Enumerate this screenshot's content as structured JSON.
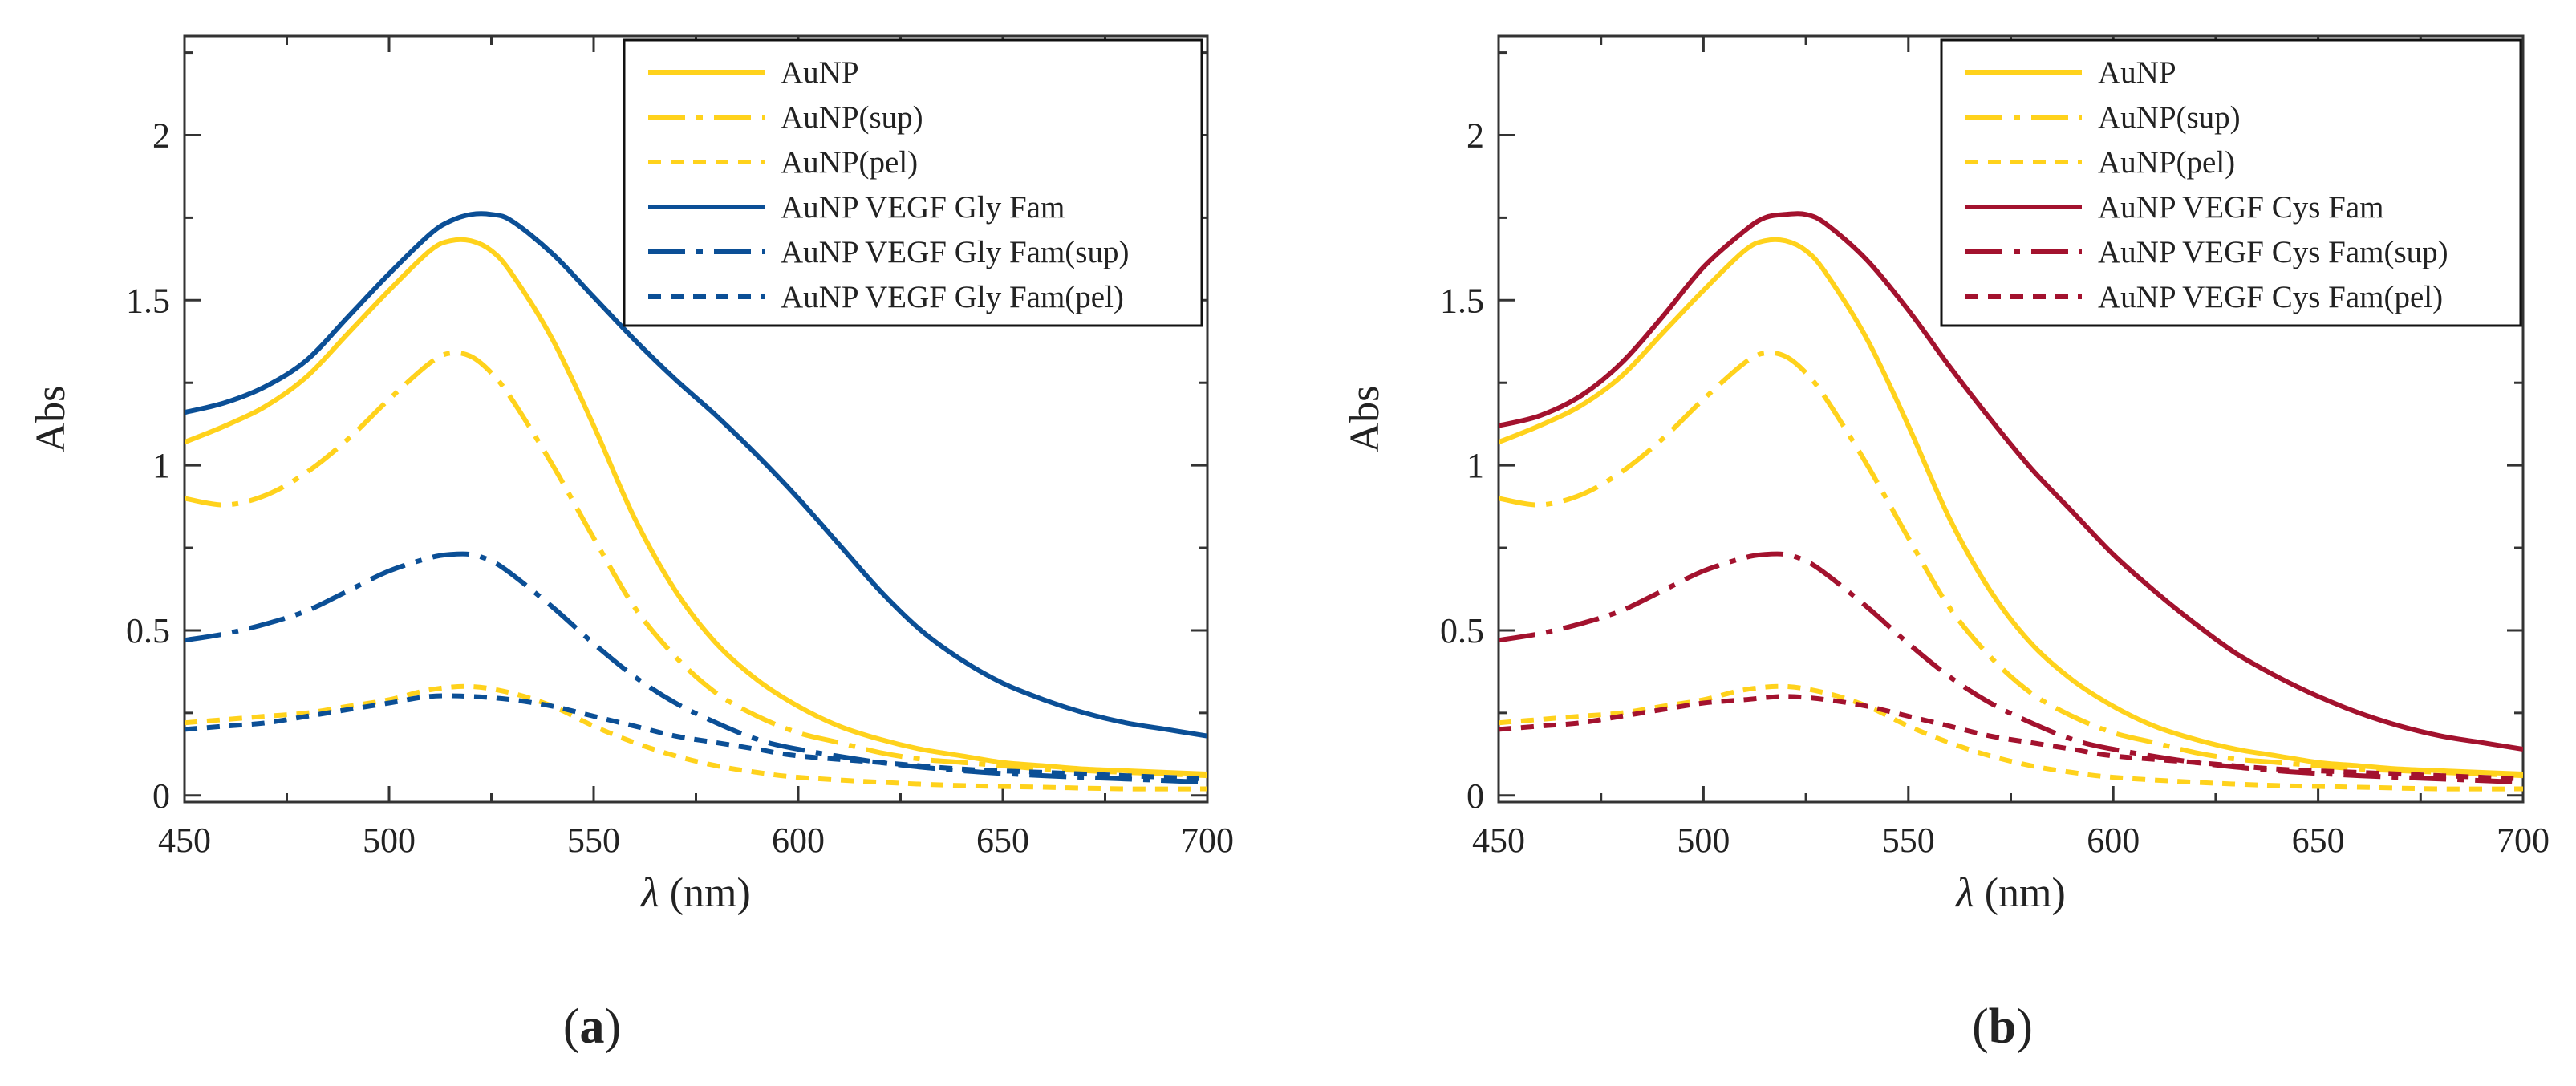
{
  "figure": {
    "panel_labels": [
      "(a)",
      "(b)"
    ]
  },
  "colors": {
    "gold": "#FFD21C",
    "blue": "#0B4F96",
    "red": "#A3122E",
    "axis": "#333333"
  },
  "chart_data": [
    {
      "type": "line",
      "panel": "(a)",
      "xlabel": "λ (nm)",
      "ylabel": "Abs",
      "xlim": [
        450,
        700
      ],
      "ylim": [
        -0.02,
        2.3
      ],
      "xticks": [
        450,
        500,
        550,
        600,
        650,
        700
      ],
      "yticks": [
        0,
        0.5,
        1,
        1.5,
        2
      ],
      "ytick_labels": [
        "0",
        "0.5",
        "1",
        "1.5",
        "2"
      ],
      "legend_position": "top-right",
      "series": [
        {
          "name": "AuNP",
          "color": "gold",
          "dash": "solid",
          "x": [
            450,
            460,
            470,
            480,
            490,
            500,
            510,
            515,
            520,
            525,
            530,
            540,
            550,
            560,
            570,
            580,
            590,
            600,
            610,
            620,
            630,
            640,
            650,
            660,
            670,
            680,
            690,
            700
          ],
          "y": [
            1.07,
            1.12,
            1.18,
            1.27,
            1.4,
            1.53,
            1.65,
            1.68,
            1.68,
            1.65,
            1.58,
            1.38,
            1.12,
            0.84,
            0.62,
            0.46,
            0.35,
            0.27,
            0.21,
            0.17,
            0.14,
            0.12,
            0.1,
            0.09,
            0.08,
            0.075,
            0.07,
            0.065
          ]
        },
        {
          "name": "AuNP(sup)",
          "color": "gold",
          "dash": "dashdot",
          "x": [
            450,
            460,
            470,
            480,
            490,
            500,
            510,
            515,
            520,
            525,
            530,
            540,
            550,
            560,
            570,
            580,
            590,
            600,
            610,
            620,
            630,
            640,
            650,
            660,
            670,
            680,
            690,
            700
          ],
          "y": [
            0.9,
            0.88,
            0.91,
            0.98,
            1.08,
            1.2,
            1.31,
            1.34,
            1.33,
            1.28,
            1.2,
            1.0,
            0.78,
            0.57,
            0.42,
            0.31,
            0.24,
            0.19,
            0.16,
            0.13,
            0.11,
            0.1,
            0.09,
            0.08,
            0.075,
            0.07,
            0.065,
            0.06
          ]
        },
        {
          "name": "AuNP(pel)",
          "color": "gold",
          "dash": "dotted",
          "x": [
            450,
            460,
            470,
            480,
            490,
            500,
            510,
            520,
            530,
            540,
            550,
            560,
            570,
            580,
            590,
            600,
            620,
            640,
            660,
            680,
            700
          ],
          "y": [
            0.22,
            0.23,
            0.24,
            0.25,
            0.27,
            0.29,
            0.32,
            0.33,
            0.31,
            0.27,
            0.21,
            0.16,
            0.12,
            0.09,
            0.07,
            0.055,
            0.04,
            0.03,
            0.025,
            0.02,
            0.02
          ]
        },
        {
          "name": "AuNP VEGF Gly Fam",
          "color": "blue",
          "dash": "solid",
          "x": [
            450,
            460,
            470,
            480,
            490,
            500,
            510,
            515,
            520,
            525,
            530,
            540,
            550,
            560,
            570,
            580,
            590,
            600,
            610,
            620,
            630,
            640,
            650,
            660,
            670,
            680,
            690,
            700
          ],
          "y": [
            1.16,
            1.19,
            1.24,
            1.32,
            1.45,
            1.58,
            1.7,
            1.74,
            1.76,
            1.76,
            1.74,
            1.64,
            1.51,
            1.38,
            1.26,
            1.15,
            1.03,
            0.9,
            0.76,
            0.62,
            0.5,
            0.41,
            0.34,
            0.29,
            0.25,
            0.22,
            0.2,
            0.18
          ]
        },
        {
          "name": "AuNP VEGF Gly Fam(sup)",
          "color": "blue",
          "dash": "dashdot",
          "x": [
            450,
            460,
            470,
            480,
            490,
            500,
            510,
            515,
            520,
            525,
            530,
            540,
            550,
            560,
            570,
            580,
            590,
            600,
            620,
            640,
            660,
            680,
            700
          ],
          "y": [
            0.47,
            0.49,
            0.52,
            0.56,
            0.62,
            0.68,
            0.72,
            0.73,
            0.73,
            0.71,
            0.67,
            0.57,
            0.46,
            0.36,
            0.28,
            0.22,
            0.17,
            0.14,
            0.1,
            0.075,
            0.06,
            0.05,
            0.04
          ]
        },
        {
          "name": "AuNP VEGF Gly Fam(pel)",
          "color": "blue",
          "dash": "dotted",
          "x": [
            450,
            460,
            470,
            480,
            490,
            500,
            510,
            520,
            530,
            540,
            550,
            560,
            570,
            580,
            590,
            600,
            620,
            640,
            660,
            680,
            700
          ],
          "y": [
            0.2,
            0.21,
            0.22,
            0.24,
            0.26,
            0.28,
            0.3,
            0.3,
            0.29,
            0.27,
            0.24,
            0.21,
            0.18,
            0.16,
            0.14,
            0.12,
            0.1,
            0.08,
            0.07,
            0.06,
            0.05
          ]
        }
      ]
    },
    {
      "type": "line",
      "panel": "(b)",
      "xlabel": "λ (nm)",
      "ylabel": "Abs",
      "xlim": [
        450,
        700
      ],
      "ylim": [
        -0.02,
        2.3
      ],
      "xticks": [
        450,
        500,
        550,
        600,
        650,
        700
      ],
      "yticks": [
        0,
        0.5,
        1,
        1.5,
        2
      ],
      "ytick_labels": [
        "0",
        "0.5",
        "1",
        "1.5",
        "2"
      ],
      "legend_position": "top-right",
      "series": [
        {
          "name": "AuNP",
          "color": "gold",
          "dash": "solid",
          "x": [
            450,
            460,
            470,
            480,
            490,
            500,
            510,
            515,
            520,
            525,
            530,
            540,
            550,
            560,
            570,
            580,
            590,
            600,
            610,
            620,
            630,
            640,
            650,
            660,
            670,
            680,
            690,
            700
          ],
          "y": [
            1.07,
            1.12,
            1.18,
            1.27,
            1.4,
            1.53,
            1.65,
            1.68,
            1.68,
            1.65,
            1.58,
            1.38,
            1.12,
            0.84,
            0.62,
            0.46,
            0.35,
            0.27,
            0.21,
            0.17,
            0.14,
            0.12,
            0.1,
            0.09,
            0.08,
            0.075,
            0.07,
            0.065
          ]
        },
        {
          "name": "AuNP(sup)",
          "color": "gold",
          "dash": "dashdot",
          "x": [
            450,
            460,
            470,
            480,
            490,
            500,
            510,
            515,
            520,
            525,
            530,
            540,
            550,
            560,
            570,
            580,
            590,
            600,
            610,
            620,
            630,
            640,
            650,
            660,
            670,
            680,
            690,
            700
          ],
          "y": [
            0.9,
            0.88,
            0.91,
            0.98,
            1.08,
            1.2,
            1.31,
            1.34,
            1.33,
            1.28,
            1.2,
            1.0,
            0.78,
            0.57,
            0.42,
            0.31,
            0.24,
            0.19,
            0.16,
            0.13,
            0.11,
            0.1,
            0.09,
            0.08,
            0.075,
            0.07,
            0.065,
            0.06
          ]
        },
        {
          "name": "AuNP(pel)",
          "color": "gold",
          "dash": "dotted",
          "x": [
            450,
            460,
            470,
            480,
            490,
            500,
            510,
            520,
            530,
            540,
            550,
            560,
            570,
            580,
            590,
            600,
            620,
            640,
            660,
            680,
            700
          ],
          "y": [
            0.22,
            0.23,
            0.24,
            0.25,
            0.27,
            0.29,
            0.32,
            0.33,
            0.31,
            0.27,
            0.21,
            0.16,
            0.12,
            0.09,
            0.07,
            0.055,
            0.04,
            0.03,
            0.025,
            0.02,
            0.02
          ]
        },
        {
          "name": "AuNP VEGF Cys Fam",
          "color": "red",
          "dash": "solid",
          "x": [
            450,
            460,
            470,
            480,
            490,
            500,
            510,
            515,
            520,
            525,
            530,
            540,
            550,
            560,
            570,
            580,
            590,
            600,
            610,
            620,
            630,
            640,
            650,
            660,
            670,
            680,
            690,
            700
          ],
          "y": [
            1.12,
            1.15,
            1.21,
            1.31,
            1.45,
            1.6,
            1.71,
            1.75,
            1.76,
            1.76,
            1.73,
            1.62,
            1.47,
            1.3,
            1.14,
            0.99,
            0.86,
            0.73,
            0.62,
            0.52,
            0.43,
            0.36,
            0.3,
            0.25,
            0.21,
            0.18,
            0.16,
            0.14
          ]
        },
        {
          "name": "AuNP VEGF Cys Fam(sup)",
          "color": "red",
          "dash": "dashdot",
          "x": [
            450,
            460,
            470,
            480,
            490,
            500,
            510,
            515,
            520,
            525,
            530,
            540,
            550,
            560,
            570,
            580,
            590,
            600,
            620,
            640,
            660,
            680,
            700
          ],
          "y": [
            0.47,
            0.49,
            0.52,
            0.56,
            0.62,
            0.68,
            0.72,
            0.73,
            0.73,
            0.71,
            0.67,
            0.57,
            0.46,
            0.36,
            0.28,
            0.22,
            0.17,
            0.14,
            0.1,
            0.075,
            0.06,
            0.05,
            0.04
          ]
        },
        {
          "name": "AuNP VEGF Cys Fam(pel)",
          "color": "red",
          "dash": "dotted",
          "x": [
            450,
            460,
            470,
            480,
            490,
            500,
            510,
            520,
            530,
            540,
            550,
            560,
            570,
            580,
            590,
            600,
            620,
            640,
            660,
            680,
            700
          ],
          "y": [
            0.2,
            0.21,
            0.22,
            0.24,
            0.26,
            0.28,
            0.29,
            0.3,
            0.29,
            0.27,
            0.24,
            0.21,
            0.18,
            0.16,
            0.14,
            0.12,
            0.1,
            0.08,
            0.07,
            0.06,
            0.05
          ]
        }
      ]
    }
  ]
}
